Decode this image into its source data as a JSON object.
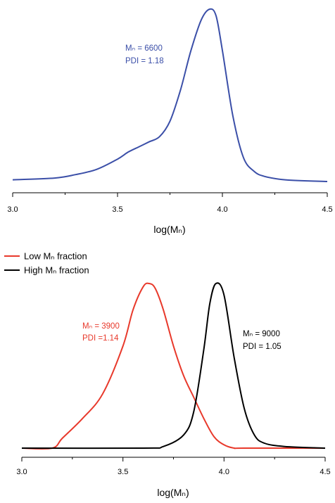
{
  "chart_data": [
    {
      "type": "line",
      "xlabel": "log(Mₙ)",
      "xlim": [
        3.0,
        4.5
      ],
      "xticks": [
        "3.0",
        "3.5",
        "4.0",
        "4.5"
      ],
      "grid": false,
      "series": [
        {
          "color": "#3b4fa8",
          "x": [
            3.0,
            3.2,
            3.3,
            3.4,
            3.5,
            3.55,
            3.6,
            3.65,
            3.7,
            3.75,
            3.8,
            3.85,
            3.9,
            3.94,
            3.97,
            4.0,
            4.05,
            4.1,
            4.15,
            4.2,
            4.3,
            4.5
          ],
          "y": [
            0.01,
            0.02,
            0.04,
            0.07,
            0.13,
            0.17,
            0.2,
            0.23,
            0.26,
            0.35,
            0.53,
            0.76,
            0.94,
            1.0,
            0.96,
            0.76,
            0.38,
            0.14,
            0.06,
            0.03,
            0.01,
            0.0
          ]
        }
      ],
      "annotations": [
        {
          "text": "Mₙ = 6600",
          "color": "#3b4fa8"
        },
        {
          "text": "PDI = 1.18",
          "color": "#3b4fa8"
        }
      ]
    },
    {
      "type": "line",
      "xlabel": "log(Mₙ)",
      "xlim": [
        3.0,
        4.5
      ],
      "xticks": [
        "3.0",
        "3.5",
        "4.0",
        "4.5"
      ],
      "grid": false,
      "legend_position": "top-left",
      "series": [
        {
          "name": "Low Mₙ fraction",
          "color": "#e8392b",
          "x": [
            3.0,
            3.15,
            3.2,
            3.3,
            3.4,
            3.5,
            3.55,
            3.6,
            3.63,
            3.66,
            3.7,
            3.75,
            3.8,
            3.85,
            3.9,
            3.95,
            4.0,
            4.05,
            4.1,
            4.5
          ],
          "y": [
            0.0,
            0.0,
            0.06,
            0.18,
            0.33,
            0.62,
            0.84,
            0.98,
            1.0,
            0.97,
            0.84,
            0.62,
            0.44,
            0.31,
            0.18,
            0.07,
            0.02,
            0.0,
            0.0,
            0.0
          ]
        },
        {
          "name": "High Mₙ fraction",
          "color": "#000000",
          "x": [
            3.0,
            3.6,
            3.7,
            3.8,
            3.85,
            3.9,
            3.93,
            3.96,
            4.0,
            4.05,
            4.1,
            4.15,
            4.2,
            4.3,
            4.5
          ],
          "y": [
            0.0,
            0.0,
            0.01,
            0.08,
            0.22,
            0.6,
            0.88,
            1.0,
            0.93,
            0.55,
            0.24,
            0.08,
            0.03,
            0.01,
            0.0
          ]
        }
      ],
      "annotations": [
        {
          "text": "Mₙ = 3900",
          "color": "#e8392b"
        },
        {
          "text": "PDI =1.14",
          "color": "#e8392b"
        },
        {
          "text": "Mₙ = 9000",
          "color": "#000000"
        },
        {
          "text": "PDI = 1.05",
          "color": "#000000"
        }
      ]
    }
  ]
}
